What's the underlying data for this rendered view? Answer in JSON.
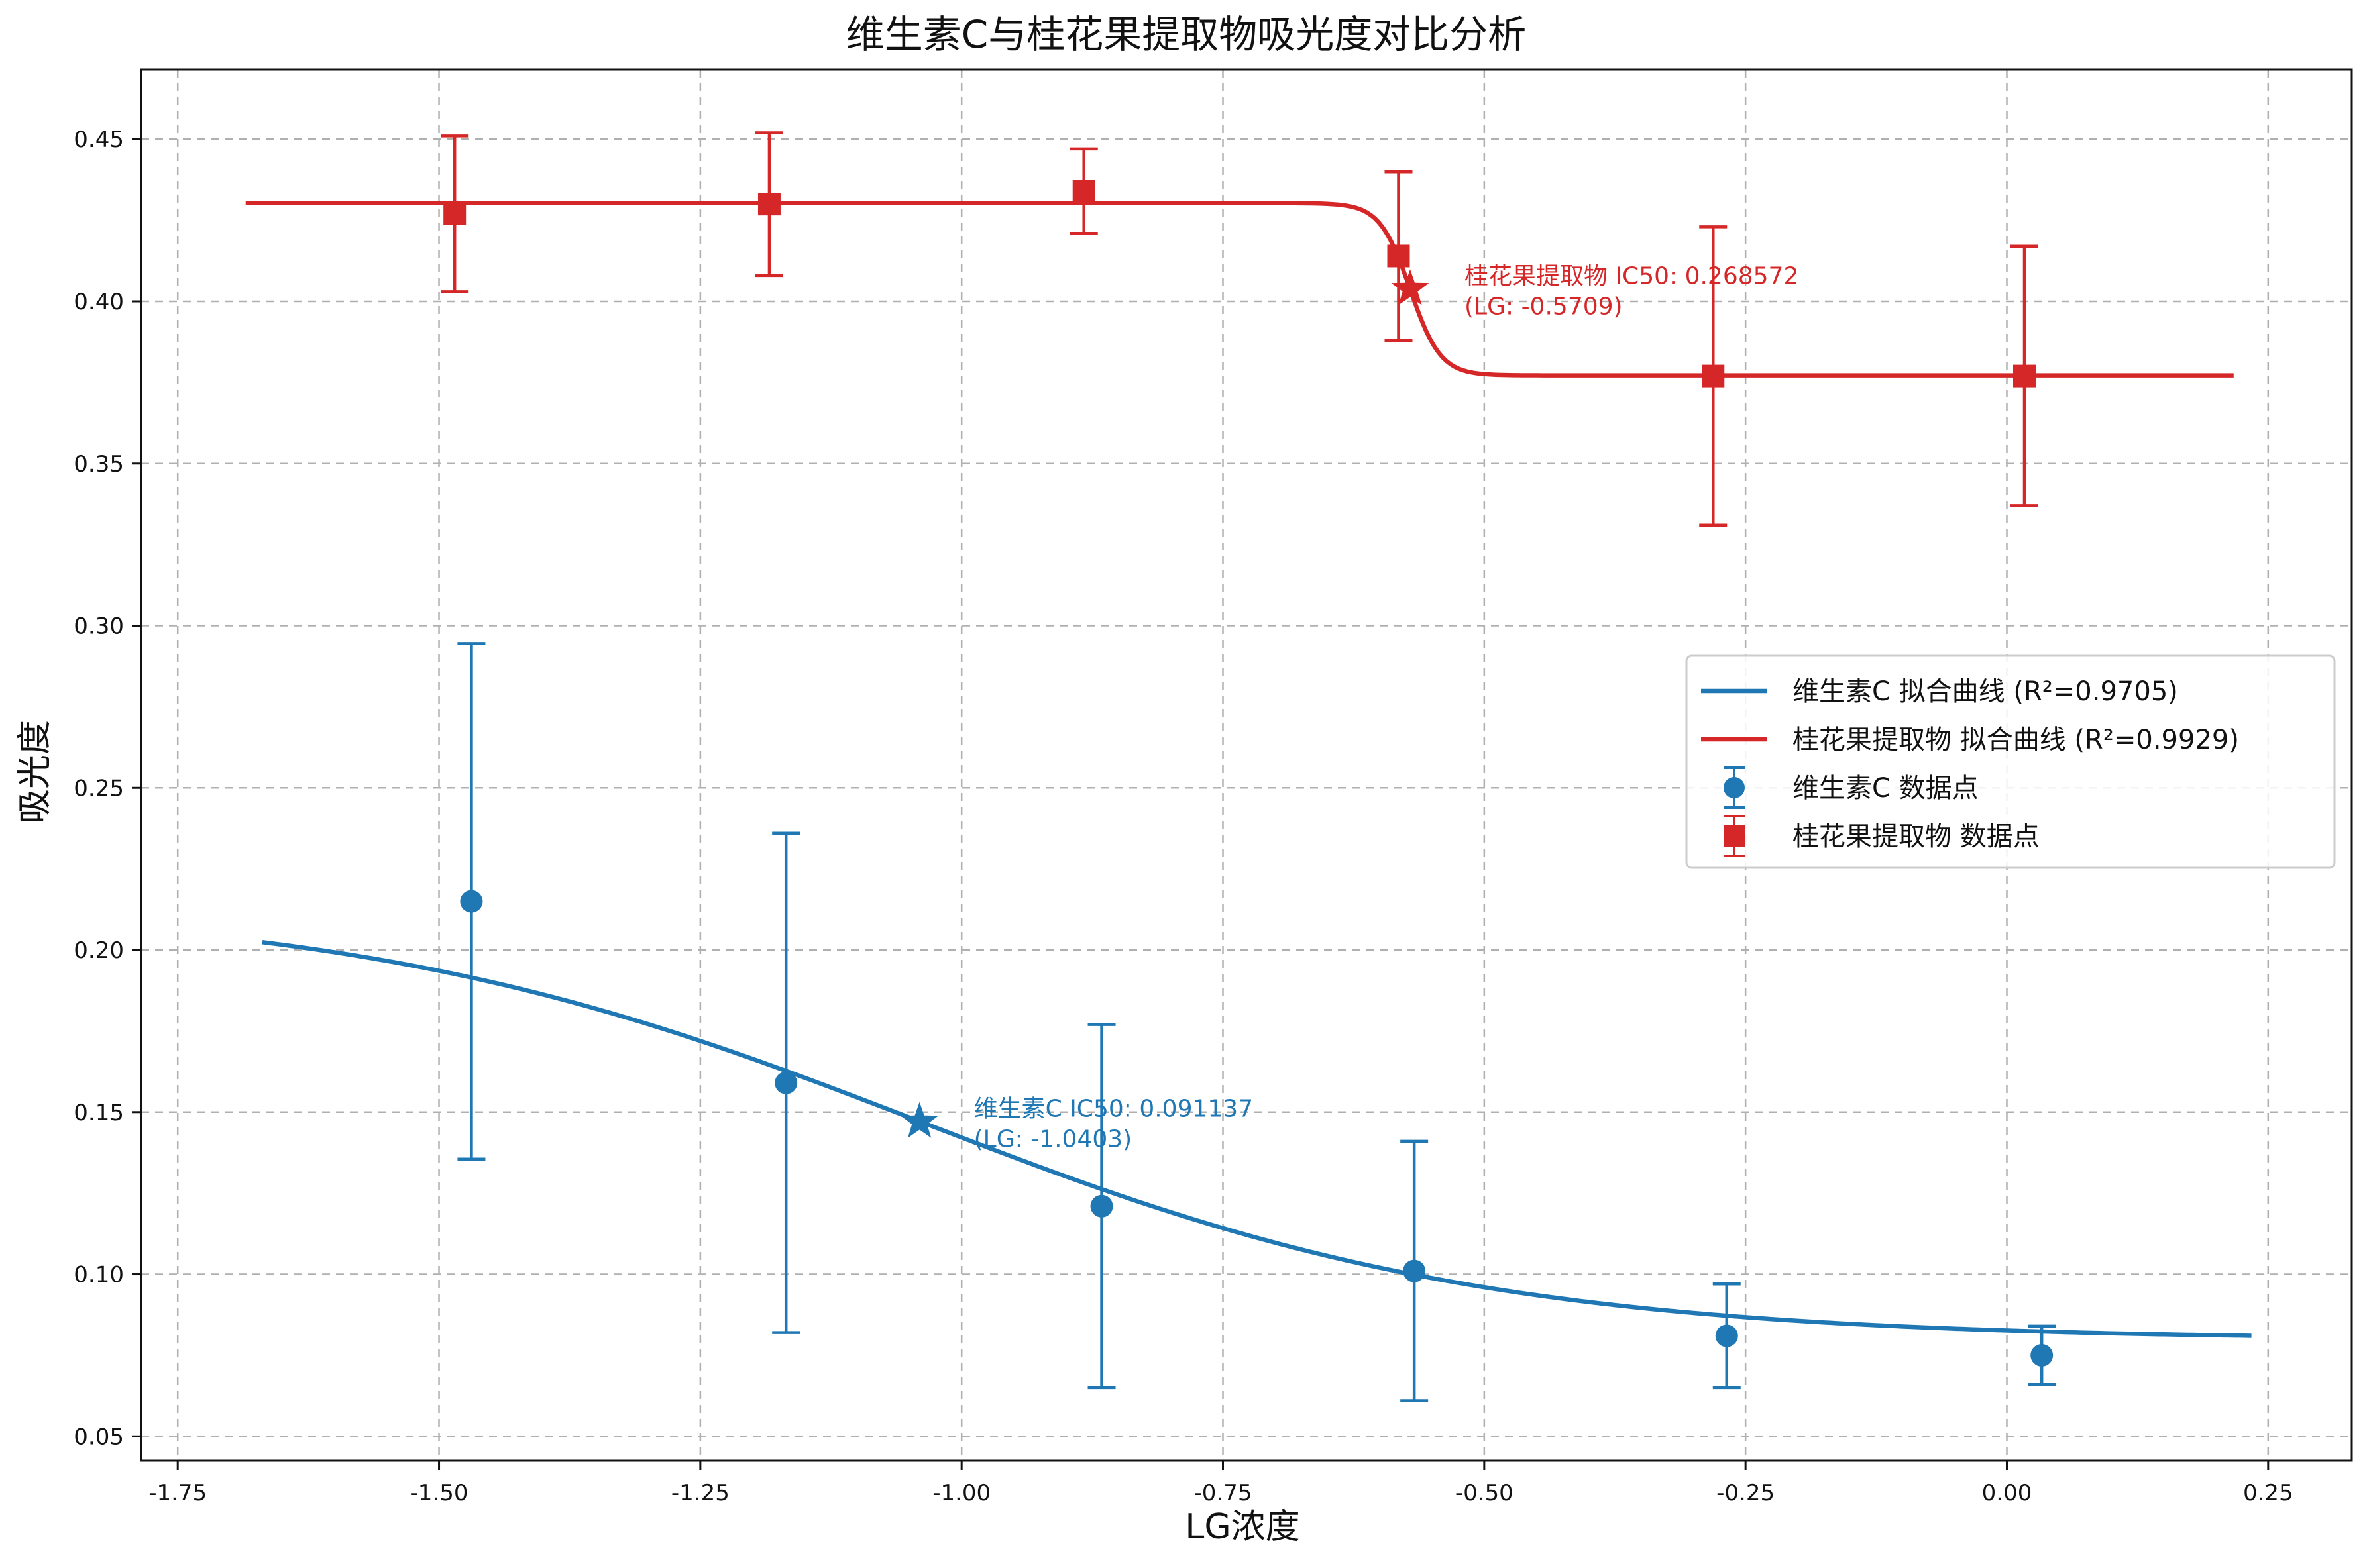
{
  "chart_data": {
    "type": "line",
    "title": "维生素C与桂花果提取物吸光度对比分析",
    "xlabel": "LG浓度",
    "ylabel": "吸光度",
    "xlim": [
      -1.785,
      0.33
    ],
    "ylim": [
      0.0425,
      0.4715
    ],
    "xticks": [
      -1.75,
      -1.5,
      -1.25,
      -1.0,
      -0.75,
      -0.5,
      -0.25,
      0.0,
      0.25
    ],
    "xtick_labels": [
      "-1.75",
      "-1.50",
      "-1.25",
      "-1.00",
      "-0.75",
      "-0.50",
      "-0.25",
      "0.00",
      "0.25"
    ],
    "yticks": [
      0.05,
      0.1,
      0.15,
      0.2,
      0.25,
      0.3,
      0.35,
      0.4,
      0.45
    ],
    "ytick_labels": [
      "0.05",
      "0.10",
      "0.15",
      "0.20",
      "0.25",
      "0.30",
      "0.35",
      "0.40",
      "0.45"
    ],
    "grid": true,
    "legend_position": "right",
    "series": [
      {
        "name": "维生素C 数据点",
        "color": "#1f77b4",
        "marker": "circle",
        "x": [
          -1.469,
          -1.168,
          -0.866,
          -0.567,
          -0.268,
          0.0334
        ],
        "y": [
          0.215,
          0.159,
          0.121,
          0.101,
          0.081,
          0.075
        ],
        "yerr": [
          0.0795,
          0.077,
          0.056,
          0.04,
          0.016,
          0.009
        ]
      },
      {
        "name": "桂花果提取物 数据点",
        "color": "#d62728",
        "marker": "square",
        "x": [
          -1.485,
          -1.184,
          -0.883,
          -0.582,
          -0.281,
          0.0168
        ],
        "y": [
          0.427,
          0.43,
          0.434,
          0.414,
          0.377,
          0.377
        ],
        "yerr": [
          0.024,
          0.022,
          0.013,
          0.026,
          0.046,
          0.04
        ]
      }
    ],
    "fits": [
      {
        "name": "维生素C 拟合曲线 (R²=0.9705)",
        "color": "#1f77b4",
        "model": {
          "bottom": 0.0798,
          "top": 0.2145,
          "logic50": -1.0403,
          "hill": 1.6
        },
        "xrange": [
          -1.669,
          0.234
        ]
      },
      {
        "name": "桂花果提取物 拟合曲线 (R²=0.9929)",
        "color": "#d62728",
        "model": {
          "bottom": 0.3772,
          "top": 0.4303,
          "logic50": -0.5709,
          "hill": 30
        },
        "xrange": [
          -1.685,
          0.217
        ]
      }
    ],
    "ic50_markers": [
      {
        "series": "维生素C",
        "color": "#1f77b4",
        "x": -1.0403,
        "y": 0.147,
        "label_line1": "维生素C IC50: 0.091137",
        "label_line2": "(LG: -1.0403)"
      },
      {
        "series": "桂花果提取物",
        "color": "#d62728",
        "x": -0.5709,
        "y": 0.4038,
        "label_line1": "桂花果提取物 IC50: 0.268572",
        "label_line2": "(LG: -0.5709)"
      }
    ],
    "legend": [
      {
        "kind": "line",
        "color": "#1f77b4",
        "label": "维生素C 拟合曲线 (R²=0.9705)"
      },
      {
        "kind": "line",
        "color": "#d62728",
        "label": "桂花果提取物 拟合曲线 (R²=0.9929)"
      },
      {
        "kind": "errorbar-circle",
        "color": "#1f77b4",
        "label": "维生素C 数据点"
      },
      {
        "kind": "errorbar-square",
        "color": "#d62728",
        "label": "桂花果提取物 数据点"
      }
    ]
  }
}
